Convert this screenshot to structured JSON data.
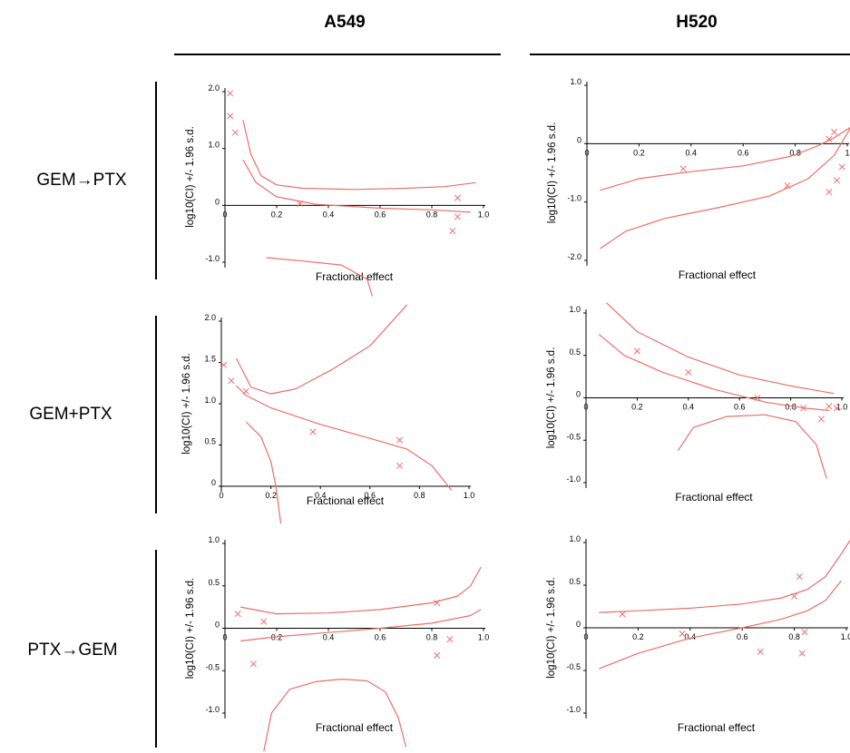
{
  "columns": {
    "a549": "A549",
    "h520": "H520"
  },
  "rows": {
    "gem_then_ptx": "GEM→PTX",
    "gem_plus_ptx": "GEM+PTX",
    "ptx_then_gem": "PTX→GEM"
  },
  "colors": {
    "curve": "#e8706a",
    "axis": "#000000"
  },
  "chart_data": [
    {
      "id": "a549-gem-then-ptx",
      "type": "scatter",
      "xlabel": "Fractional effect",
      "ylabel": "log10(CI) +/- 1.96 s.d.",
      "xlim": [
        0,
        1
      ],
      "ylim": [
        -1.0,
        2.0
      ],
      "xticks": [
        0,
        0.2,
        0.4,
        0.6,
        0.8,
        1.0
      ],
      "xtick_labels": [
        "0",
        "0.2",
        "0.4",
        "0.6",
        "0.8",
        "1.0"
      ],
      "yticks": [
        -1.0,
        0,
        1.0,
        2.0
      ],
      "ytick_labels": [
        "-1.0",
        "0",
        "1.0",
        "2.0"
      ],
      "points": [
        [
          0.02,
          1.97
        ],
        [
          0.02,
          1.57
        ],
        [
          0.04,
          1.28
        ],
        [
          0.29,
          0.03
        ],
        [
          0.9,
          0.13
        ],
        [
          0.9,
          -0.2
        ],
        [
          0.88,
          -0.45
        ]
      ],
      "curves": [
        [
          [
            0.07,
            1.5
          ],
          [
            0.1,
            0.9
          ],
          [
            0.14,
            0.52
          ],
          [
            0.2,
            0.36
          ],
          [
            0.3,
            0.3
          ],
          [
            0.5,
            0.28
          ],
          [
            0.7,
            0.3
          ],
          [
            0.85,
            0.33
          ],
          [
            0.97,
            0.4
          ]
        ],
        [
          [
            0.07,
            0.8
          ],
          [
            0.12,
            0.4
          ],
          [
            0.2,
            0.15
          ],
          [
            0.35,
            0.02
          ],
          [
            0.6,
            -0.05
          ],
          [
            0.8,
            -0.08
          ],
          [
            0.95,
            -0.12
          ]
        ],
        [
          [
            0.16,
            -0.92
          ],
          [
            0.3,
            -0.98
          ],
          [
            0.45,
            -1.05
          ],
          [
            0.55,
            -1.3
          ],
          [
            0.57,
            -1.6
          ]
        ]
      ]
    },
    {
      "id": "h520-gem-then-ptx",
      "type": "scatter",
      "xlabel": "Fractional effect",
      "ylabel": "log10(CI) +/- 1.96 s.d.",
      "xlim": [
        0,
        1
      ],
      "ylim": [
        -2.0,
        1.0
      ],
      "xticks": [
        0,
        0.2,
        0.4,
        0.6,
        0.8,
        1.0
      ],
      "xtick_labels": [
        "0",
        "0.2",
        "0.4",
        "0.6",
        "0.8",
        "1"
      ],
      "yticks": [
        -2.0,
        -1.0,
        0,
        1.0
      ],
      "ytick_labels": [
        "-2.0",
        "-1.0",
        "0",
        "1.0"
      ],
      "points": [
        [
          0.37,
          -0.43
        ],
        [
          0.77,
          -0.72
        ],
        [
          0.93,
          0.08
        ],
        [
          0.95,
          0.2
        ],
        [
          0.98,
          -0.4
        ],
        [
          0.96,
          -0.63
        ],
        [
          0.93,
          -0.83
        ]
      ],
      "curves": [
        [
          [
            0.05,
            -0.8
          ],
          [
            0.2,
            -0.6
          ],
          [
            0.4,
            -0.48
          ],
          [
            0.6,
            -0.38
          ],
          [
            0.78,
            -0.22
          ],
          [
            0.88,
            -0.05
          ],
          [
            0.95,
            0.1
          ],
          [
            1.02,
            0.3
          ]
        ],
        [
          [
            0.05,
            -1.8
          ],
          [
            0.15,
            -1.5
          ],
          [
            0.3,
            -1.28
          ],
          [
            0.5,
            -1.1
          ],
          [
            0.7,
            -0.9
          ],
          [
            0.85,
            -0.6
          ],
          [
            0.95,
            -0.2
          ],
          [
            1.05,
            0.55
          ]
        ]
      ]
    },
    {
      "id": "a549-gem-plus-ptx",
      "type": "scatter",
      "xlabel": "Fractional effect",
      "ylabel": "log10(CI) +/- 1.96 s.d.",
      "xlim": [
        0,
        1
      ],
      "ylim": [
        0,
        2.0
      ],
      "xticks": [
        0,
        0.2,
        0.4,
        0.6,
        0.8,
        1.0
      ],
      "xtick_labels": [
        "0",
        "0.2",
        "0.4",
        "0.6",
        "0.8",
        "1.0"
      ],
      "yticks": [
        0,
        0.5,
        1.0,
        1.5,
        2.0
      ],
      "ytick_labels": [
        "0",
        "0.5",
        "1.0",
        "1.5",
        "2.0"
      ],
      "points": [
        [
          0.01,
          1.47
        ],
        [
          0.04,
          1.28
        ],
        [
          0.1,
          1.15
        ],
        [
          0.37,
          0.66
        ],
        [
          0.72,
          0.56
        ],
        [
          0.72,
          0.25
        ]
      ],
      "curves": [
        [
          [
            0.06,
            1.55
          ],
          [
            0.12,
            1.2
          ],
          [
            0.2,
            1.12
          ],
          [
            0.3,
            1.18
          ],
          [
            0.45,
            1.42
          ],
          [
            0.6,
            1.7
          ],
          [
            0.75,
            2.2
          ]
        ],
        [
          [
            0.06,
            1.22
          ],
          [
            0.1,
            1.1
          ],
          [
            0.2,
            0.95
          ],
          [
            0.4,
            0.75
          ],
          [
            0.6,
            0.58
          ],
          [
            0.75,
            0.45
          ],
          [
            0.85,
            0.25
          ],
          [
            0.93,
            -0.05
          ]
        ],
        [
          [
            0.1,
            0.78
          ],
          [
            0.16,
            0.6
          ],
          [
            0.2,
            0.3
          ],
          [
            0.22,
            0.0
          ],
          [
            0.24,
            -0.45
          ]
        ]
      ]
    },
    {
      "id": "h520-gem-plus-ptx",
      "type": "scatter",
      "xlabel": "Fractional effect",
      "ylabel": "log10(CI) +/- 1.96 s.d.",
      "xlim": [
        0,
        1
      ],
      "ylim": [
        -1.0,
        1.0
      ],
      "xticks": [
        0,
        0.2,
        0.4,
        0.6,
        0.8,
        1.0
      ],
      "xtick_labels": [
        "0",
        "0.2",
        "0.4",
        "0.6",
        "0.8",
        "1.0"
      ],
      "yticks": [
        -1.0,
        -0.5,
        0,
        0.5,
        1.0
      ],
      "ytick_labels": [
        "-1.0",
        "-0.5",
        "0",
        "0.5",
        "1.0"
      ],
      "points": [
        [
          0.2,
          0.55
        ],
        [
          0.4,
          0.3
        ],
        [
          0.67,
          0.0
        ],
        [
          0.85,
          -0.12
        ],
        [
          0.92,
          -0.25
        ],
        [
          0.95,
          -0.1
        ],
        [
          0.98,
          -0.12
        ]
      ],
      "curves": [
        [
          [
            0.08,
            1.12
          ],
          [
            0.2,
            0.78
          ],
          [
            0.4,
            0.48
          ],
          [
            0.6,
            0.27
          ],
          [
            0.8,
            0.14
          ],
          [
            0.97,
            0.05
          ]
        ],
        [
          [
            0.05,
            0.75
          ],
          [
            0.15,
            0.5
          ],
          [
            0.3,
            0.3
          ],
          [
            0.5,
            0.1
          ],
          [
            0.7,
            -0.05
          ],
          [
            0.85,
            -0.12
          ],
          [
            0.95,
            -0.15
          ]
        ],
        [
          [
            0.36,
            -0.62
          ],
          [
            0.42,
            -0.35
          ],
          [
            0.55,
            -0.22
          ],
          [
            0.7,
            -0.2
          ],
          [
            0.82,
            -0.28
          ],
          [
            0.9,
            -0.55
          ],
          [
            0.94,
            -0.95
          ]
        ]
      ]
    },
    {
      "id": "a549-ptx-then-gem",
      "type": "scatter",
      "xlabel": "Fractional effect",
      "ylabel": "log10(CI) +/- 1.96 s.d.",
      "xlim": [
        0,
        1
      ],
      "ylim": [
        -1.0,
        1.0
      ],
      "xticks": [
        0,
        0.2,
        0.4,
        0.6,
        0.8,
        1.0
      ],
      "xtick_labels": [
        "0",
        "0.2",
        "0.4",
        "0.6",
        "0.8",
        "1.0"
      ],
      "yticks": [
        -1.0,
        -0.5,
        0,
        0.5,
        1.0
      ],
      "ytick_labels": [
        "-1.0",
        "-0.5",
        "0",
        "0.5",
        "1.0"
      ],
      "points": [
        [
          0.05,
          0.17
        ],
        [
          0.15,
          0.08
        ],
        [
          0.11,
          -0.42
        ],
        [
          0.82,
          0.3
        ],
        [
          0.87,
          -0.13
        ],
        [
          0.82,
          -0.32
        ]
      ],
      "curves": [
        [
          [
            0.06,
            0.25
          ],
          [
            0.2,
            0.17
          ],
          [
            0.4,
            0.18
          ],
          [
            0.6,
            0.22
          ],
          [
            0.8,
            0.3
          ],
          [
            0.9,
            0.38
          ],
          [
            0.95,
            0.5
          ],
          [
            0.99,
            0.72
          ]
        ],
        [
          [
            0.06,
            -0.15
          ],
          [
            0.2,
            -0.1
          ],
          [
            0.4,
            -0.05
          ],
          [
            0.6,
            0.0
          ],
          [
            0.8,
            0.06
          ],
          [
            0.95,
            0.15
          ],
          [
            0.99,
            0.22
          ]
        ],
        [
          [
            0.15,
            -1.45
          ],
          [
            0.18,
            -1.0
          ],
          [
            0.25,
            -0.72
          ],
          [
            0.35,
            -0.63
          ],
          [
            0.45,
            -0.6
          ],
          [
            0.55,
            -0.62
          ],
          [
            0.62,
            -0.75
          ],
          [
            0.67,
            -1.05
          ],
          [
            0.7,
            -1.4
          ]
        ]
      ]
    },
    {
      "id": "h520-ptx-then-gem",
      "type": "scatter",
      "xlabel": "Fractional effect",
      "ylabel": "log10(CI) +/- 1.96 s.d.",
      "xlim": [
        0,
        1
      ],
      "ylim": [
        -1.0,
        1.0
      ],
      "xticks": [
        0,
        0.2,
        0.4,
        0.6,
        0.8,
        1.0
      ],
      "xtick_labels": [
        "0",
        "0.2",
        "0.4",
        "0.6",
        "0.8",
        "1.0"
      ],
      "yticks": [
        -1.0,
        -0.5,
        0,
        0.5,
        1.0
      ],
      "ytick_labels": [
        "-1.0",
        "-0.5",
        "0",
        "0.5",
        "1.0"
      ],
      "points": [
        [
          0.14,
          0.16
        ],
        [
          0.37,
          -0.07
        ],
        [
          0.67,
          -0.28
        ],
        [
          0.8,
          0.37
        ],
        [
          0.82,
          0.6
        ],
        [
          0.84,
          -0.05
        ],
        [
          0.83,
          -0.3
        ]
      ],
      "curves": [
        [
          [
            0.05,
            0.18
          ],
          [
            0.2,
            0.2
          ],
          [
            0.4,
            0.23
          ],
          [
            0.6,
            0.28
          ],
          [
            0.75,
            0.35
          ],
          [
            0.85,
            0.45
          ],
          [
            0.92,
            0.6
          ],
          [
            0.97,
            0.82
          ],
          [
            1.02,
            1.05
          ]
        ],
        [
          [
            0.05,
            -0.48
          ],
          [
            0.2,
            -0.3
          ],
          [
            0.4,
            -0.12
          ],
          [
            0.6,
            0.0
          ],
          [
            0.75,
            0.1
          ],
          [
            0.85,
            0.2
          ],
          [
            0.92,
            0.32
          ],
          [
            0.98,
            0.55
          ]
        ]
      ]
    }
  ]
}
